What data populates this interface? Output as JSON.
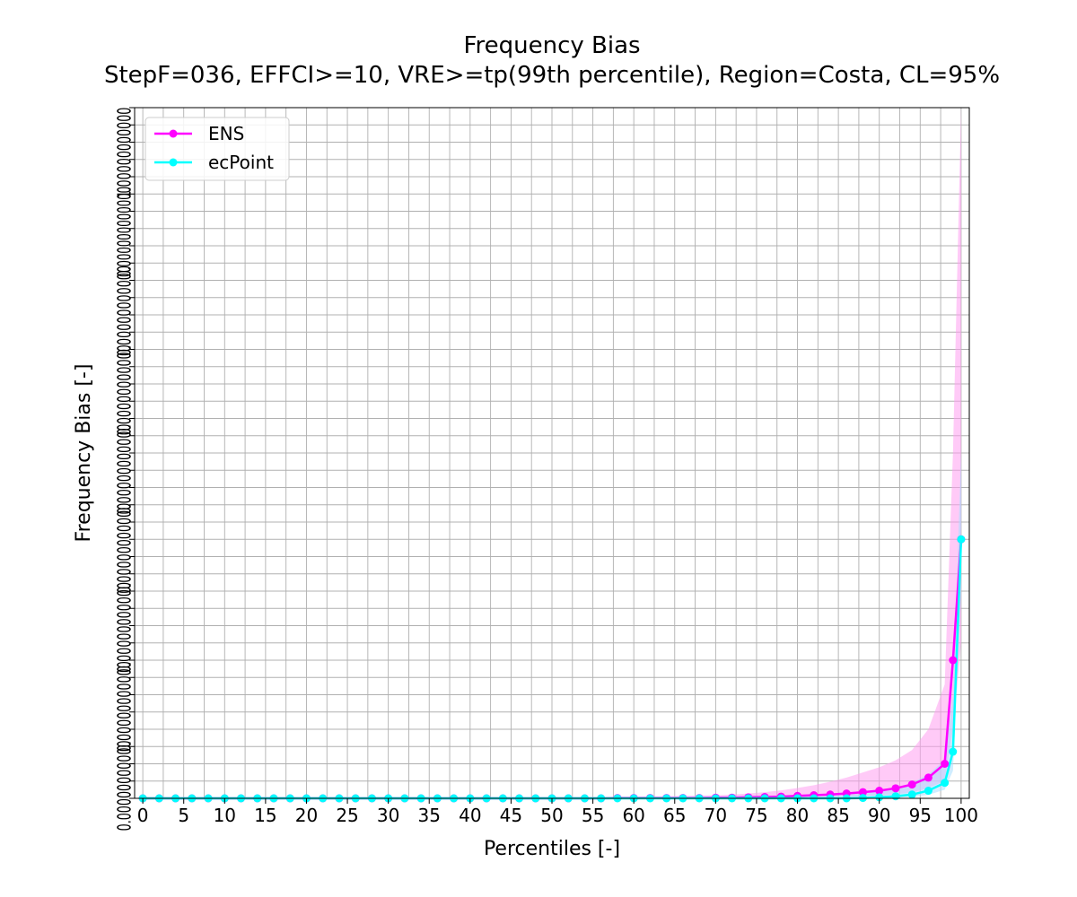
{
  "chart_data": {
    "type": "line",
    "title": "Frequency Bias",
    "subtitle": "StepF=036, EFFCI>=10, VRE>=tp(99th percentile), Region=Costa, CL=95%",
    "xlabel": "Percentiles [-]",
    "ylabel": "Frequency Bias [-]",
    "xlim": [
      -1,
      101
    ],
    "ylim": [
      0,
      2
    ],
    "grid": true,
    "legend_position": "top-left",
    "x_ticks": [
      0,
      5,
      10,
      15,
      20,
      25,
      30,
      35,
      40,
      45,
      50,
      55,
      60,
      65,
      70,
      75,
      80,
      85,
      90,
      95,
      100
    ],
    "y_tick_overlap_text": [
      "1.00000000000",
      "0.000000000000",
      "0.00000000000",
      "0.00000000000",
      "0.00000000000",
      "0.00000000000",
      "0.00000000000",
      "0.00000000000",
      "0.00000000000"
    ],
    "x": [
      0,
      2,
      4,
      6,
      8,
      10,
      12,
      14,
      16,
      18,
      20,
      22,
      24,
      26,
      28,
      30,
      32,
      34,
      36,
      38,
      40,
      42,
      44,
      46,
      48,
      50,
      52,
      54,
      56,
      58,
      60,
      62,
      64,
      66,
      68,
      70,
      72,
      74,
      76,
      78,
      80,
      82,
      84,
      86,
      88,
      90,
      92,
      94,
      96,
      98,
      99,
      100
    ],
    "series": [
      {
        "name": "ENS",
        "color": "#ff00ff",
        "band_color": "#ff9ff0",
        "values": [
          0,
          0,
          0,
          0,
          0,
          0,
          0,
          0,
          0,
          0,
          0,
          0,
          0,
          0,
          0,
          0,
          0,
          0,
          0,
          0,
          0,
          0,
          0,
          0,
          0,
          0,
          0,
          0,
          0,
          0.001,
          0.001,
          0.001,
          0.001,
          0.001,
          0.001,
          0.002,
          0.002,
          0.003,
          0.004,
          0.005,
          0.007,
          0.009,
          0.011,
          0.014,
          0.018,
          0.022,
          0.029,
          0.04,
          0.06,
          0.1,
          0.4,
          0.75
        ],
        "band_lower": [
          0,
          0,
          0,
          0,
          0,
          0,
          0,
          0,
          0,
          0,
          0,
          0,
          0,
          0,
          0,
          0,
          0,
          0,
          0,
          0,
          0,
          0,
          0,
          0,
          0,
          0,
          0,
          0,
          0,
          0,
          0,
          0,
          0,
          0,
          0,
          0,
          0,
          0.001,
          0.001,
          0.001,
          0.002,
          0.003,
          0.004,
          0.005,
          0.006,
          0.008,
          0.012,
          0.017,
          0.03,
          0.05,
          0.2,
          0.45
        ],
        "band_upper": [
          0,
          0,
          0,
          0,
          0,
          0,
          0,
          0,
          0,
          0,
          0,
          0,
          0,
          0,
          0,
          0,
          0,
          0,
          0,
          0,
          0,
          0,
          0,
          0,
          0,
          0,
          0,
          0,
          0.002,
          0.003,
          0.004,
          0.005,
          0.006,
          0.007,
          0.008,
          0.009,
          0.011,
          0.014,
          0.018,
          0.023,
          0.03,
          0.038,
          0.048,
          0.06,
          0.075,
          0.09,
          0.11,
          0.14,
          0.2,
          0.33,
          1.0,
          3.5
        ]
      },
      {
        "name": "ecPoint",
        "color": "#00ffff",
        "band_color": "#a8dfff",
        "values": [
          0,
          0,
          0,
          0,
          0,
          0,
          0,
          0,
          0,
          0,
          0,
          0,
          0,
          0,
          0,
          0,
          0,
          0,
          0,
          0,
          0,
          0,
          0,
          0,
          0,
          0,
          0,
          0,
          0,
          0,
          0,
          0,
          0,
          0,
          0,
          0,
          0,
          0,
          0,
          0,
          0,
          0,
          0,
          0,
          0.001,
          0.003,
          0.006,
          0.011,
          0.022,
          0.045,
          0.135,
          0.75
        ],
        "band_lower": [
          0,
          0,
          0,
          0,
          0,
          0,
          0,
          0,
          0,
          0,
          0,
          0,
          0,
          0,
          0,
          0,
          0,
          0,
          0,
          0,
          0,
          0,
          0,
          0,
          0,
          0,
          0,
          0,
          0,
          0,
          0,
          0,
          0,
          0,
          0,
          0,
          0,
          0,
          0,
          0,
          0,
          0,
          0,
          0,
          0,
          0.001,
          0.002,
          0.004,
          0.01,
          0.025,
          0.08,
          0.6
        ],
        "band_upper": [
          0,
          0,
          0,
          0,
          0,
          0,
          0,
          0,
          0,
          0,
          0,
          0,
          0,
          0,
          0,
          0,
          0,
          0,
          0,
          0,
          0,
          0,
          0,
          0,
          0,
          0,
          0,
          0,
          0,
          0,
          0.001,
          0.001,
          0.001,
          0.001,
          0.001,
          0.001,
          0.001,
          0.001,
          0.002,
          0.003,
          0.004,
          0.005,
          0.007,
          0.01,
          0.014,
          0.02,
          0.03,
          0.045,
          0.07,
          0.11,
          0.3,
          1.0
        ]
      }
    ]
  }
}
